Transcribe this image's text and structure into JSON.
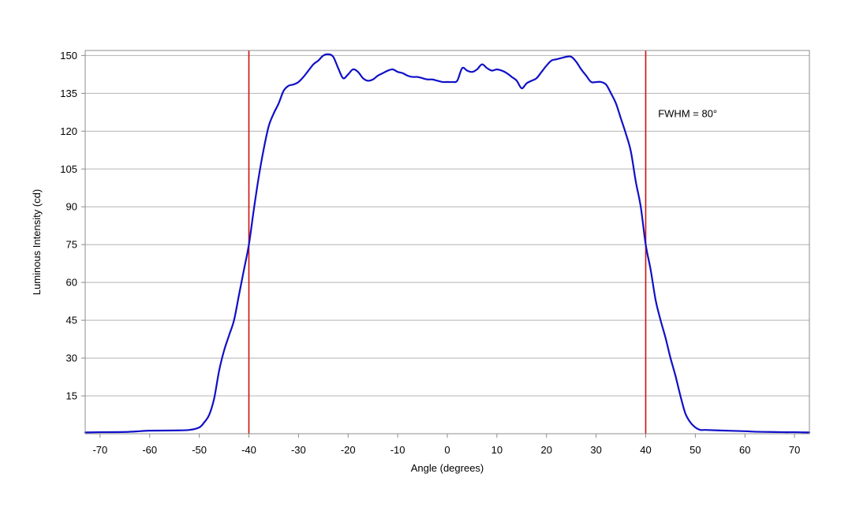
{
  "chart_data": {
    "type": "line",
    "title": "",
    "xlabel": "Angle (degrees)",
    "ylabel": "Luminous Intensity (cd)",
    "xlim": [
      -73,
      73
    ],
    "ylim": [
      0,
      152
    ],
    "x_ticks": [
      -70,
      -60,
      -50,
      -40,
      -30,
      -20,
      -10,
      0,
      10,
      20,
      30,
      40,
      50,
      60,
      70
    ],
    "y_ticks": [
      15,
      30,
      45,
      60,
      75,
      90,
      105,
      120,
      135,
      150
    ],
    "grid": "horizontal",
    "colors": {
      "series": "#1010c8",
      "markers": "#d01010",
      "grid": "#b4b4b4",
      "frame": "#8c8c8c"
    },
    "series": [
      {
        "x": [
          -73,
          -70,
          -65,
          -62,
          -60,
          -55,
          -52,
          -50,
          -49,
          -48,
          -47,
          -46,
          -45,
          -44,
          -43,
          -42,
          -41,
          -40,
          -39,
          -38,
          -37,
          -36,
          -35,
          -34,
          -33,
          -32,
          -31,
          -30,
          -29,
          -28,
          -27,
          -26,
          -25,
          -24,
          -23,
          -22,
          -21,
          -20,
          -19,
          -18,
          -17,
          -16,
          -15,
          -14,
          -13,
          -12,
          -11,
          -10,
          -9,
          -8,
          -7,
          -6,
          -5,
          -4,
          -3,
          -2,
          -1,
          0,
          1,
          2,
          3,
          4,
          5,
          6,
          7,
          8,
          9,
          10,
          11,
          12,
          13,
          14,
          15,
          16,
          17,
          18,
          19,
          20,
          21,
          22,
          23,
          24,
          25,
          26,
          27,
          28,
          29,
          30,
          31,
          32,
          33,
          34,
          35,
          36,
          37,
          38,
          39,
          40,
          41,
          42,
          43,
          44,
          45,
          46,
          47,
          48,
          49,
          50,
          51,
          52,
          55,
          60,
          62,
          65,
          68,
          70,
          73
        ],
        "y": [
          0.5,
          0.6,
          0.7,
          1.0,
          1.2,
          1.3,
          1.5,
          2.5,
          4.5,
          7.5,
          14,
          25,
          33,
          39,
          45,
          55,
          65,
          75,
          89,
          102,
          113,
          122,
          127,
          131,
          136,
          138,
          138.5,
          139.5,
          141.5,
          144,
          146.5,
          148,
          150,
          150.5,
          149.5,
          145,
          141,
          142.5,
          144.5,
          143.5,
          141,
          140,
          140.5,
          142,
          143,
          144,
          144.5,
          143.5,
          143,
          142,
          141.5,
          141.5,
          141,
          140.5,
          140.5,
          140,
          139.5,
          139.5,
          139.5,
          140,
          145,
          144,
          143.5,
          144.5,
          146.5,
          145,
          144,
          144.5,
          144,
          143,
          141.5,
          140,
          137,
          139,
          140,
          141,
          143.5,
          146,
          148,
          148.5,
          149,
          149.5,
          149.5,
          147.5,
          144.5,
          142,
          139.5,
          139.5,
          139.5,
          138.5,
          135,
          131,
          125,
          119,
          112,
          100,
          90,
          75,
          65,
          53,
          45,
          38,
          30,
          23,
          15,
          8,
          4.5,
          2.5,
          1.5,
          1.5,
          1.3,
          1.0,
          0.8,
          0.7,
          0.6,
          0.6,
          0.5
        ]
      }
    ],
    "markers": [
      {
        "x": -40
      },
      {
        "x": 40
      }
    ],
    "annotations": [
      {
        "text": "FWHM = 80°",
        "x": 42.5,
        "y": 127
      }
    ]
  }
}
